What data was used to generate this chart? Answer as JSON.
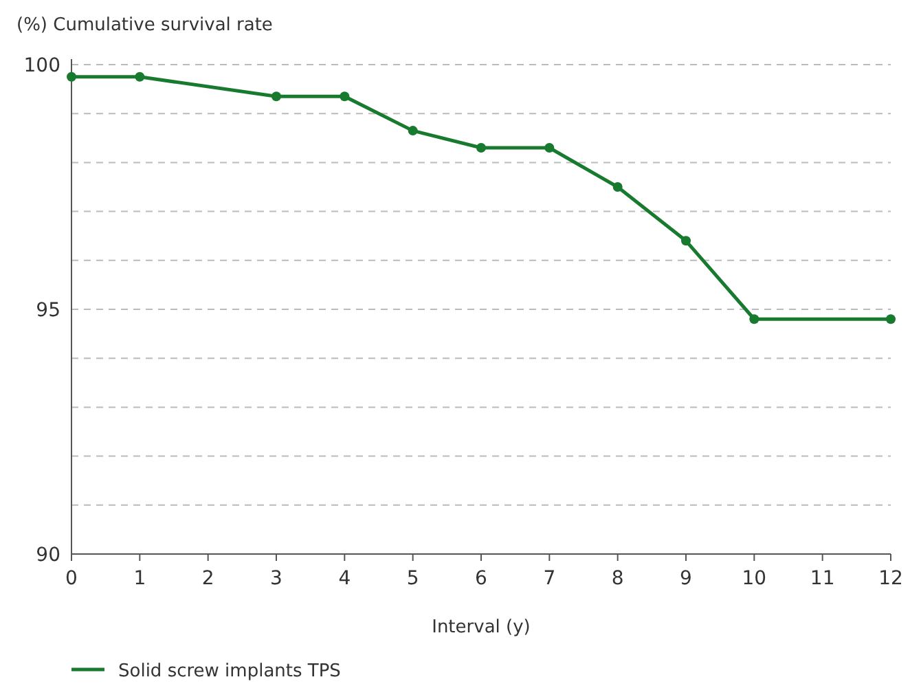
{
  "chart_data": {
    "type": "line",
    "ylabel": "(%) Cumulative survival rate",
    "xlabel": "Interval (y)",
    "x": [
      0,
      1,
      3,
      4,
      5,
      6,
      7,
      8,
      9,
      10,
      12
    ],
    "series": [
      {
        "name": "Solid screw implants TPS",
        "color": "#187a2f",
        "values": [
          99.75,
          99.75,
          99.35,
          99.35,
          98.65,
          98.3,
          98.3,
          97.5,
          96.4,
          94.8,
          94.8
        ]
      }
    ],
    "xlim": [
      0,
      12
    ],
    "xticks": [
      0,
      1,
      2,
      3,
      4,
      5,
      6,
      7,
      8,
      9,
      10,
      11,
      12
    ],
    "ylim": [
      90,
      100
    ],
    "yticks": [
      90,
      {
        "value": 91,
        "label": null
      },
      {
        "value": 92,
        "label": null
      },
      {
        "value": 93,
        "label": null
      },
      {
        "value": 94,
        "label": null
      },
      95,
      {
        "value": 96,
        "label": null
      },
      {
        "value": 97,
        "label": null
      },
      {
        "value": 98,
        "label": null
      },
      {
        "value": 99,
        "label": null
      },
      100
    ],
    "grid": "y",
    "marker": "circle",
    "line_style": "solid",
    "legend": "bottom left"
  }
}
